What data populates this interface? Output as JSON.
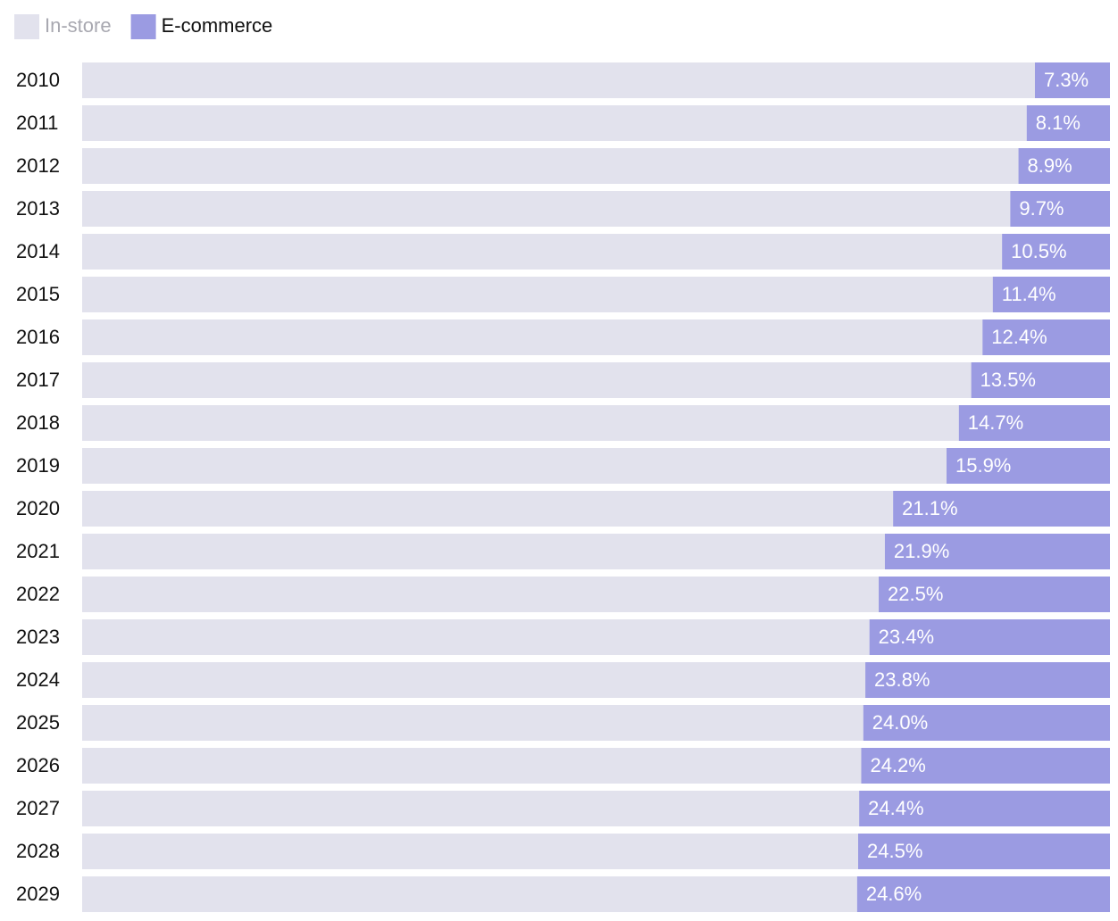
{
  "chart_data": {
    "type": "stacked-bar-horizontal",
    "categories": [
      "2010",
      "2011",
      "2012",
      "2013",
      "2014",
      "2015",
      "2016",
      "2017",
      "2018",
      "2019",
      "2020",
      "2021",
      "2022",
      "2023",
      "2024",
      "2025",
      "2026",
      "2027",
      "2028",
      "2029"
    ],
    "series": [
      {
        "name": "In-store",
        "color": "#e2e2ed",
        "values": [
          92.7,
          91.9,
          91.1,
          90.3,
          89.5,
          88.6,
          87.6,
          86.5,
          85.3,
          84.1,
          78.9,
          78.1,
          77.5,
          76.6,
          76.2,
          76.0,
          75.8,
          75.6,
          75.5,
          75.4
        ]
      },
      {
        "name": "E-commerce",
        "color": "#9b9be2",
        "values": [
          7.3,
          8.1,
          8.9,
          9.7,
          10.5,
          11.4,
          12.4,
          13.5,
          14.7,
          15.9,
          21.1,
          21.9,
          22.5,
          23.4,
          23.8,
          24.0,
          24.2,
          24.4,
          24.5,
          24.6
        ],
        "value_labels": [
          "7.3%",
          "8.1%",
          "8.9%",
          "9.7%",
          "10.5%",
          "11.4%",
          "12.4%",
          "13.5%",
          "14.7%",
          "15.9%",
          "21.1%",
          "21.9%",
          "22.5%",
          "23.4%",
          "23.8%",
          "24.0%",
          "24.2%",
          "24.4%",
          "24.5%",
          "24.6%"
        ]
      }
    ],
    "xlim": [
      0,
      100
    ]
  }
}
